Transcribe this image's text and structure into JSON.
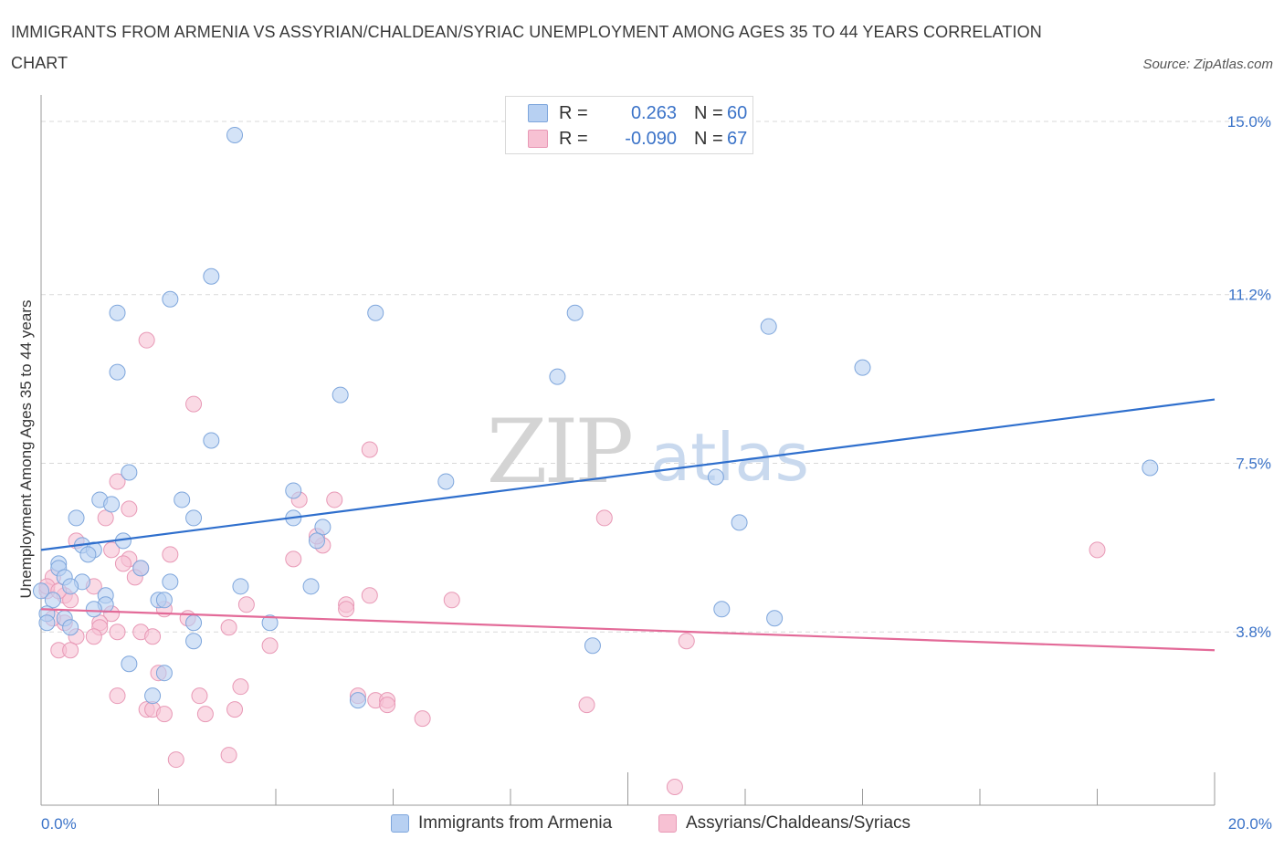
{
  "header": {
    "title": "IMMIGRANTS FROM ARMENIA VS ASSYRIAN/CHALDEAN/SYRIAC UNEMPLOYMENT AMONG AGES 35 TO 44 YEARS CORRELATION CHART",
    "source": "Source: ZipAtlas.com"
  },
  "legend": {
    "r_label": "R =",
    "n_label": "N =",
    "rows": [
      {
        "r": "0.263",
        "n": "60"
      },
      {
        "r": "-0.090",
        "n": "67"
      }
    ]
  },
  "watermark": {
    "zip": "ZIP",
    "atlas": "atlas"
  },
  "colors": {
    "armenia_fill": "#b7d0f2",
    "armenia_stroke": "#7ea6dc",
    "armenia_line": "#2f6fcd",
    "assyrian_fill": "#f7c1d3",
    "assyrian_stroke": "#e899b6",
    "assyrian_line": "#e36a98",
    "tick_text": "#3b73c8",
    "grid": "#d9d9d9"
  },
  "chart_data": {
    "type": "scatter",
    "title": "IMMIGRANTS FROM ARMENIA VS ASSYRIAN/CHALDEAN/SYRIAC UNEMPLOYMENT AMONG AGES 35 TO 44 YEARS CORRELATION CHART",
    "xlabel": "",
    "ylabel": "Unemployment Among Ages 35 to 44 years",
    "xlim": [
      0,
      20
    ],
    "ylim": [
      0,
      15.3
    ],
    "x_tick_labels": [
      "0.0%",
      "20.0%"
    ],
    "y_ticks": [
      3.8,
      7.5,
      11.2,
      15.0
    ],
    "y_tick_labels": [
      "3.8%",
      "7.5%",
      "11.2%",
      "15.0%"
    ],
    "grid": true,
    "series": [
      {
        "name": "Immigrants from Armenia",
        "R": 0.263,
        "N": 60,
        "trend": {
          "x": [
            0,
            20
          ],
          "y": [
            5.6,
            8.9
          ]
        },
        "points": [
          [
            3.3,
            14.7
          ],
          [
            2.9,
            11.6
          ],
          [
            2.2,
            11.1
          ],
          [
            1.3,
            10.8
          ],
          [
            5.7,
            10.8
          ],
          [
            9.1,
            10.8
          ],
          [
            12.4,
            10.5
          ],
          [
            14.0,
            9.6
          ],
          [
            1.3,
            9.5
          ],
          [
            8.8,
            9.4
          ],
          [
            5.1,
            9.0
          ],
          [
            2.9,
            8.0
          ],
          [
            1.5,
            7.3
          ],
          [
            6.9,
            7.1
          ],
          [
            11.5,
            7.2
          ],
          [
            18.9,
            7.4
          ],
          [
            4.3,
            6.9
          ],
          [
            1.0,
            6.7
          ],
          [
            1.2,
            6.6
          ],
          [
            2.4,
            6.7
          ],
          [
            0.6,
            6.3
          ],
          [
            2.6,
            6.3
          ],
          [
            4.3,
            6.3
          ],
          [
            11.9,
            6.2
          ],
          [
            4.8,
            6.1
          ],
          [
            1.4,
            5.8
          ],
          [
            4.7,
            5.8
          ],
          [
            0.7,
            5.7
          ],
          [
            0.9,
            5.6
          ],
          [
            0.8,
            5.5
          ],
          [
            0.3,
            5.3
          ],
          [
            0.3,
            5.2
          ],
          [
            1.7,
            5.2
          ],
          [
            0.4,
            5.0
          ],
          [
            2.2,
            4.9
          ],
          [
            0.7,
            4.9
          ],
          [
            0.5,
            4.8
          ],
          [
            3.4,
            4.8
          ],
          [
            4.6,
            4.8
          ],
          [
            1.1,
            4.6
          ],
          [
            0.2,
            4.5
          ],
          [
            2.0,
            4.5
          ],
          [
            2.1,
            4.5
          ],
          [
            1.1,
            4.4
          ],
          [
            0.9,
            4.3
          ],
          [
            11.6,
            4.3
          ],
          [
            0.1,
            4.2
          ],
          [
            0.4,
            4.1
          ],
          [
            12.5,
            4.1
          ],
          [
            0.1,
            4.0
          ],
          [
            2.6,
            4.0
          ],
          [
            3.9,
            4.0
          ],
          [
            0.5,
            3.9
          ],
          [
            2.6,
            3.6
          ],
          [
            9.4,
            3.5
          ],
          [
            1.5,
            3.1
          ],
          [
            2.1,
            2.9
          ],
          [
            1.9,
            2.4
          ],
          [
            5.4,
            2.3
          ],
          [
            0.0,
            4.7
          ]
        ]
      },
      {
        "name": "Assyrians/Chaldeans/Syriacs",
        "R": -0.09,
        "N": 67,
        "trend": {
          "x": [
            0,
            20
          ],
          "y": [
            4.3,
            3.4
          ]
        },
        "points": [
          [
            1.8,
            10.2
          ],
          [
            2.6,
            8.8
          ],
          [
            5.6,
            7.8
          ],
          [
            1.3,
            7.1
          ],
          [
            4.4,
            6.7
          ],
          [
            5.0,
            6.7
          ],
          [
            1.5,
            6.5
          ],
          [
            1.1,
            6.3
          ],
          [
            9.6,
            6.3
          ],
          [
            0.6,
            5.8
          ],
          [
            1.2,
            5.6
          ],
          [
            18.0,
            5.6
          ],
          [
            2.2,
            5.5
          ],
          [
            4.3,
            5.4
          ],
          [
            1.5,
            5.4
          ],
          [
            1.7,
            5.2
          ],
          [
            4.8,
            5.7
          ],
          [
            0.2,
            5.0
          ],
          [
            1.6,
            5.0
          ],
          [
            0.9,
            4.8
          ],
          [
            0.1,
            4.7
          ],
          [
            0.4,
            4.6
          ],
          [
            0.5,
            4.5
          ],
          [
            7.0,
            4.5
          ],
          [
            5.6,
            4.6
          ],
          [
            3.5,
            4.4
          ],
          [
            2.1,
            4.3
          ],
          [
            5.2,
            4.4
          ],
          [
            5.2,
            4.3
          ],
          [
            1.2,
            4.2
          ],
          [
            2.5,
            4.1
          ],
          [
            0.4,
            4.0
          ],
          [
            0.2,
            4.1
          ],
          [
            1.0,
            4.0
          ],
          [
            1.0,
            3.9
          ],
          [
            3.2,
            3.9
          ],
          [
            1.7,
            3.8
          ],
          [
            1.3,
            3.8
          ],
          [
            0.9,
            3.7
          ],
          [
            0.6,
            3.7
          ],
          [
            1.9,
            3.7
          ],
          [
            11.0,
            3.6
          ],
          [
            3.9,
            3.5
          ],
          [
            0.3,
            3.4
          ],
          [
            0.5,
            3.4
          ],
          [
            2.0,
            2.9
          ],
          [
            3.4,
            2.6
          ],
          [
            1.3,
            2.4
          ],
          [
            2.7,
            2.4
          ],
          [
            5.4,
            2.4
          ],
          [
            5.7,
            2.3
          ],
          [
            5.9,
            2.3
          ],
          [
            5.9,
            2.2
          ],
          [
            9.3,
            2.2
          ],
          [
            3.3,
            2.1
          ],
          [
            1.8,
            2.1
          ],
          [
            1.9,
            2.1
          ],
          [
            2.1,
            2.0
          ],
          [
            2.8,
            2.0
          ],
          [
            6.5,
            1.9
          ],
          [
            3.2,
            1.1
          ],
          [
            2.3,
            1.0
          ],
          [
            10.8,
            0.4
          ],
          [
            0.1,
            4.8
          ],
          [
            0.3,
            4.7
          ],
          [
            4.7,
            5.9
          ],
          [
            1.4,
            5.3
          ]
        ]
      }
    ]
  }
}
